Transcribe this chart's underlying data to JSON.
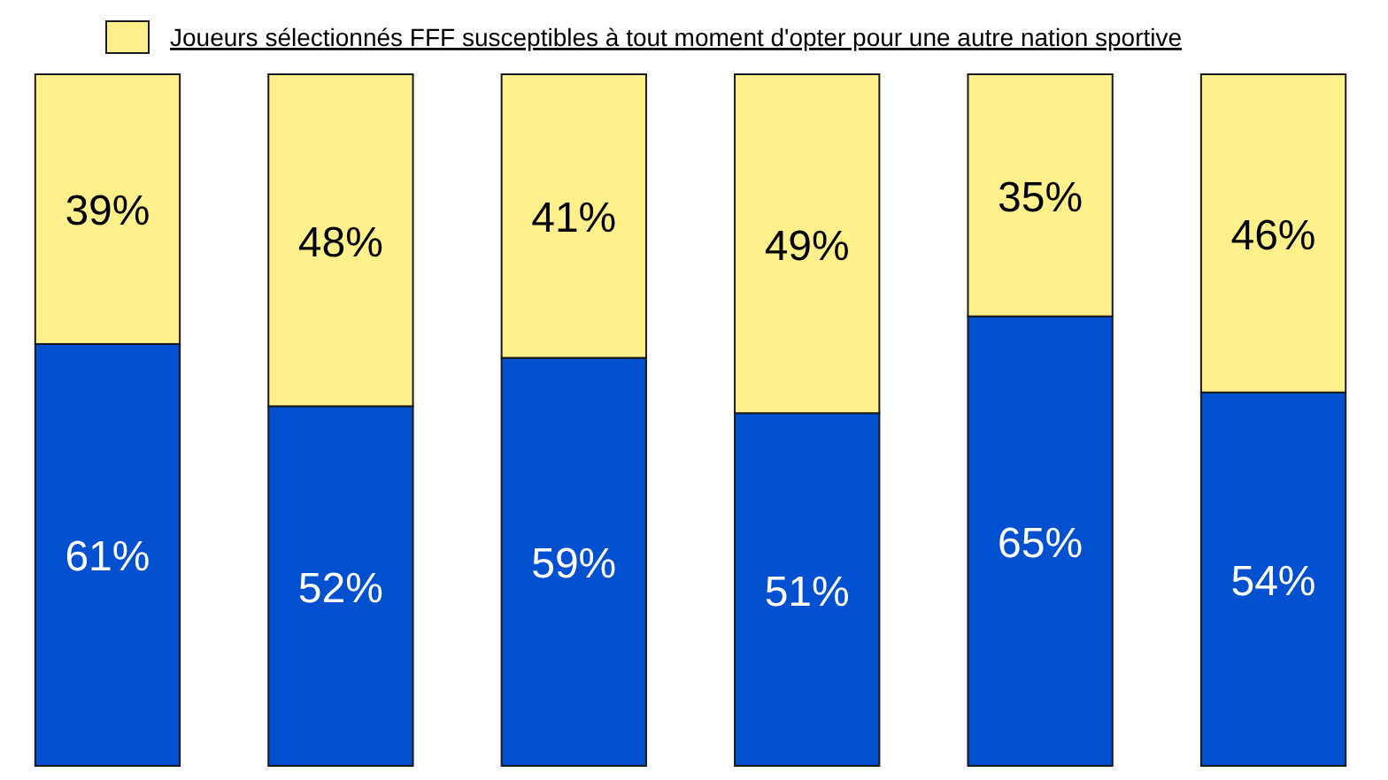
{
  "chart_data": {
    "type": "bar",
    "stacked": true,
    "categories": [
      null,
      null,
      null,
      null,
      null,
      null
    ],
    "ylim": [
      0,
      100
    ],
    "series": [
      {
        "color": "#0050d0",
        "values": [
          61,
          52,
          59,
          51,
          65,
          54
        ],
        "value_labels": [
          "61%",
          "52%",
          "59%",
          "51%",
          "65%",
          "54%"
        ]
      },
      {
        "name": "Joueurs sélectionnés FFF susceptibles à tout moment d'opter pour une autre nation sportive",
        "color": "#fff08c",
        "values": [
          39,
          48,
          41,
          49,
          35,
          46
        ],
        "value_labels": [
          "39%",
          "48%",
          "41%",
          "49%",
          "35%",
          "46%"
        ]
      }
    ],
    "legend": "top"
  }
}
